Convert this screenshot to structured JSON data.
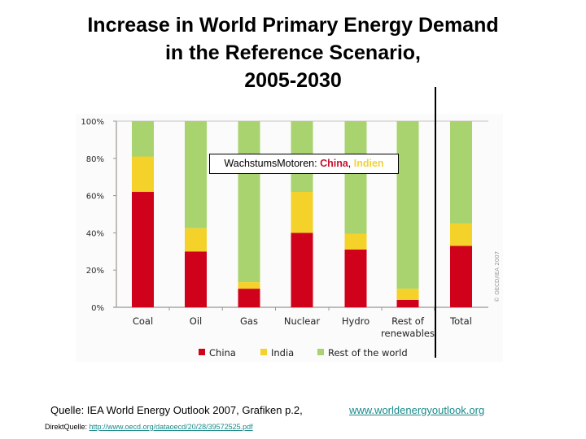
{
  "title": {
    "line1": "Increase in World Primary Energy Demand",
    "line2": "in the Reference Scenario,",
    "line3": "2005-2030"
  },
  "annotation": {
    "prefix": "WachstumsMotoren: ",
    "china": "China",
    "separator": ", ",
    "india": "Indien"
  },
  "copyright": "© OECD/IEA 2007",
  "footer": {
    "source": "Quelle: IEA World Energy Outlook 2007, Grafiken p.2,",
    "website": "www.worldenergyoutlook.org",
    "direct_label": "DirektQuelle: ",
    "direct_link": "http://www.oecd.org/dataoecd/20/28/39572525.pdf"
  },
  "chart_data": {
    "type": "bar",
    "stacked": true,
    "title": "Increase in World Primary Energy Demand in the Reference Scenario, 2005-2030",
    "xlabel": "",
    "ylabel": "",
    "ylim": [
      0,
      100
    ],
    "yticks": [
      "0%",
      "20%",
      "40%",
      "60%",
      "80%",
      "100%"
    ],
    "ytick_values": [
      0,
      20,
      40,
      60,
      80,
      100
    ],
    "categories": [
      "Coal",
      "Oil",
      "Gas",
      "Nuclear",
      "Hydro",
      "Rest of renewables",
      "Total"
    ],
    "category_lines": [
      [
        "Coal"
      ],
      [
        "Oil"
      ],
      [
        "Gas"
      ],
      [
        "Nuclear"
      ],
      [
        "Hydro"
      ],
      [
        "Rest of",
        "renewables"
      ],
      [
        "Total"
      ]
    ],
    "series": [
      {
        "name": "China",
        "color": "#d0021b",
        "values": [
          62,
          30,
          10,
          40,
          31,
          4,
          33
        ]
      },
      {
        "name": "India",
        "color": "#f4d22a",
        "values": [
          19,
          12.5,
          3.5,
          22,
          8.5,
          6,
          12
        ]
      },
      {
        "name": "Rest of the world",
        "color": "#a8d36e",
        "values": [
          19,
          57.5,
          86.5,
          38,
          60.5,
          90,
          55
        ]
      }
    ],
    "legend_position": "bottom",
    "grid": false
  }
}
